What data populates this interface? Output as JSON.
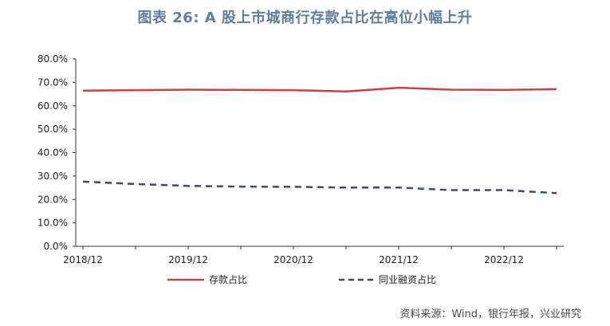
{
  "title": "图表 26: A 股上市城商行存款占比在高位小幅上升",
  "source": "资料来源：Wind，银行年报，兴业研究",
  "colors": {
    "title": "#5f7d9c",
    "series1": "#c8404a",
    "series2": "#3b4b6b",
    "axis": "#333333"
  },
  "chart_data": {
    "type": "line",
    "title": "图表 26: A 股上市城商行存款占比在高位小幅上升",
    "xlabel": "",
    "ylabel": "",
    "ylim": [
      0,
      80
    ],
    "y_ticks": [
      "0.0%",
      "10.0%",
      "20.0%",
      "30.0%",
      "40.0%",
      "50.0%",
      "60.0%",
      "70.0%",
      "80.0%"
    ],
    "x_tick_labels": [
      "2018/12",
      "2019/12",
      "2020/12",
      "2021/12",
      "2022/12"
    ],
    "x": [
      "2018/12",
      "2019/06",
      "2019/12",
      "2020/06",
      "2020/12",
      "2021/06",
      "2021/12",
      "2022/06",
      "2022/12",
      "2023/06"
    ],
    "series": [
      {
        "name": "存款占比",
        "style": "solid",
        "color": "#c8404a",
        "values": [
          66.5,
          66.7,
          66.9,
          66.8,
          66.7,
          66.1,
          67.7,
          66.9,
          66.8,
          67.1
        ]
      },
      {
        "name": "同业融资占比",
        "style": "dashed",
        "color": "#3b4b6b",
        "values": [
          27.6,
          26.6,
          25.8,
          25.5,
          25.4,
          25.1,
          25.1,
          24.0,
          24.0,
          22.7
        ]
      }
    ],
    "grid": false,
    "legend_position": "bottom"
  }
}
